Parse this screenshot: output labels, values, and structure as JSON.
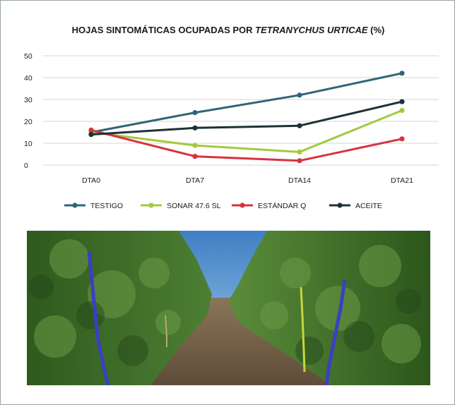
{
  "chart_data": {
    "type": "line",
    "title_main": "HOJAS SINTOMÁTICAS OCUPADAS POR ",
    "title_italic": "TETRANYCHUS URTICAE",
    "title_end": " (%)",
    "xlabel": "",
    "ylabel": "",
    "categories": [
      "DTA0",
      "DTA7",
      "DTA14",
      "DTA21"
    ],
    "ylim": [
      0,
      50
    ],
    "yticks": [
      "0",
      "10",
      "20",
      "30",
      "40",
      "50"
    ],
    "grid": "horizontal",
    "legend_position": "bottom",
    "series": [
      {
        "name": "TESTIGO",
        "color": "#2f6679",
        "values": [
          15,
          24,
          32,
          42
        ]
      },
      {
        "name": "SONAR 47.6 SL",
        "color": "#a4c93c",
        "values": [
          15,
          9,
          6,
          25
        ]
      },
      {
        "name": "ESTÁNDAR Q",
        "color": "#d8323f",
        "values": [
          16,
          4,
          2,
          12
        ]
      },
      {
        "name": "ACEITE",
        "color": "#1d3137",
        "values": [
          14,
          17,
          18,
          29
        ]
      }
    ]
  },
  "photo": {
    "subject": "avocado-orchard-row",
    "colors": {
      "sky": "#5f9fd8",
      "foliage": "#3d6f2a",
      "ground": "#7a6650",
      "tape": "#3b3fc4"
    }
  }
}
